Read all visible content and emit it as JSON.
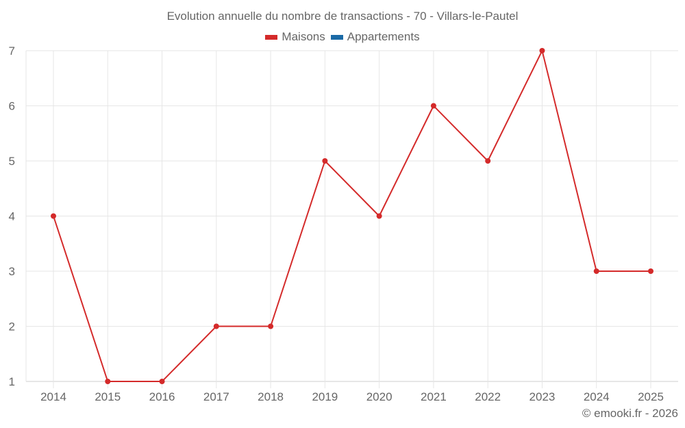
{
  "chart_data": {
    "type": "line",
    "title": "Evolution annuelle du nombre de transactions - 70 - Villars-le-Pautel",
    "categories": [
      "2014",
      "2015",
      "2016",
      "2017",
      "2018",
      "2019",
      "2020",
      "2021",
      "2022",
      "2023",
      "2024",
      "2025"
    ],
    "series": [
      {
        "name": "Maisons",
        "color": "#d42a2a",
        "values": [
          4,
          1,
          1,
          2,
          2,
          5,
          4,
          6,
          5,
          7,
          3,
          3
        ]
      },
      {
        "name": "Appartements",
        "color": "#1a6aa6",
        "values": []
      }
    ],
    "xlabel": "",
    "ylabel": "",
    "ylim": [
      1,
      7
    ],
    "yticks": [
      1,
      2,
      3,
      4,
      5,
      6,
      7
    ],
    "grid": true,
    "legend_position": "top"
  },
  "credit": "© emooki.fr - 2026"
}
